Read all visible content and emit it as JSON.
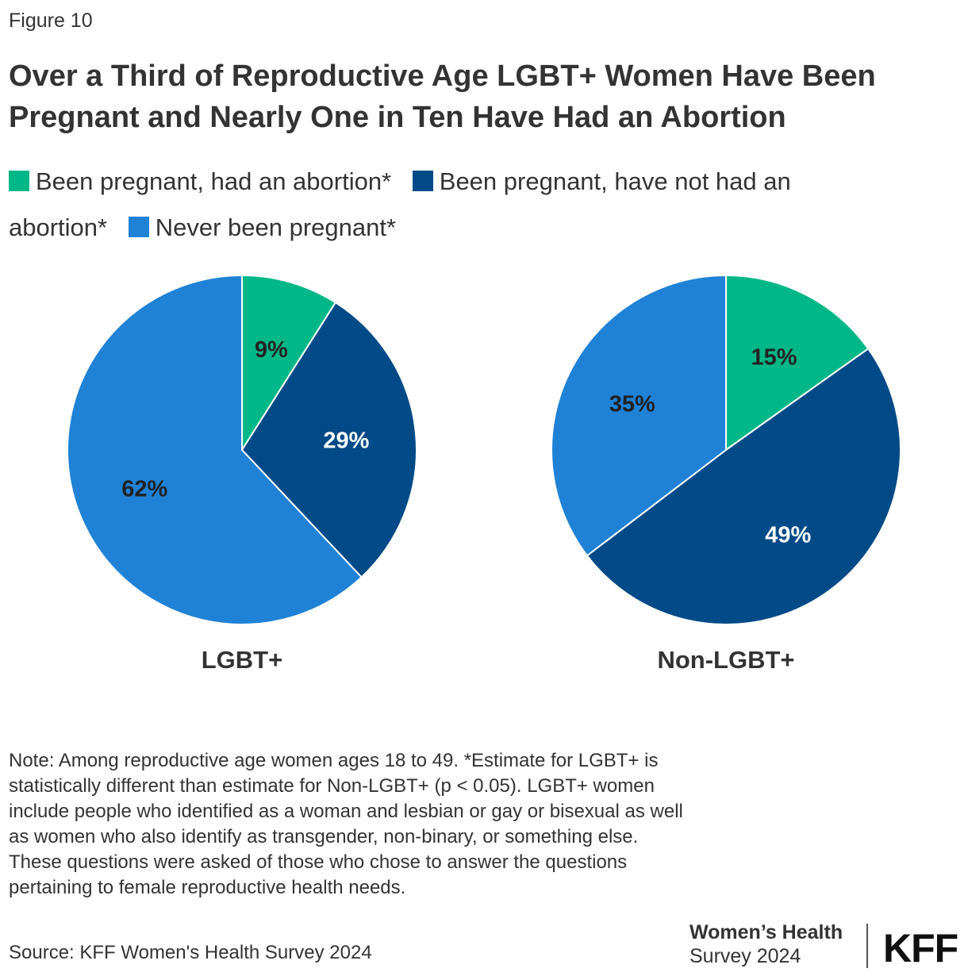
{
  "figure_label": "Figure 10",
  "title": "Over a Third of Reproductive Age LGBT+ Women Have Been Pregnant and Nearly One in Ten Have Had an Abortion",
  "chart_data": [
    {
      "type": "pie",
      "name": "LGBT+",
      "categories": [
        "Been pregnant, had an abortion*",
        "Been pregnant, have not had an abortion*",
        "Never been pregnant*"
      ],
      "values": [
        9,
        29,
        62
      ],
      "labels": [
        "9%",
        "29%",
        "62%"
      ],
      "colors": [
        "#00b787",
        "#004a87",
        "#1f82d6"
      ],
      "legend": "top"
    },
    {
      "type": "pie",
      "name": "Non-LGBT+",
      "categories": [
        "Been pregnant, had an abortion*",
        "Been pregnant, have not had an abortion*",
        "Never been pregnant*"
      ],
      "values": [
        15,
        49,
        35
      ],
      "labels": [
        "15%",
        "49%",
        "35%"
      ],
      "colors": [
        "#00b787",
        "#004a87",
        "#1f82d6"
      ],
      "legend": "top"
    }
  ],
  "legend": [
    {
      "label": "Been pregnant, had an abortion*",
      "color": "#00b787"
    },
    {
      "label": "Been pregnant, have not had an abortion*",
      "color": "#004a87"
    },
    {
      "label": "Never been pregnant*",
      "color": "#1f82d6"
    }
  ],
  "note": "Note: Among reproductive age women ages 18 to 49. *Estimate for LGBT+ is statistically different than estimate for Non-LGBT+ (p < 0.05). LGBT+ women include people who identified as a woman and lesbian or gay or bisexual as well as women who also identify as transgender, non-binary, or something else. These questions were asked of those who chose to answer the questions pertaining to female reproductive health needs.",
  "source": "Source: KFF Women's Health Survey 2024",
  "logo": {
    "line1": "Women’s Health",
    "line2": "Survey 2024",
    "brand": "KFF"
  }
}
